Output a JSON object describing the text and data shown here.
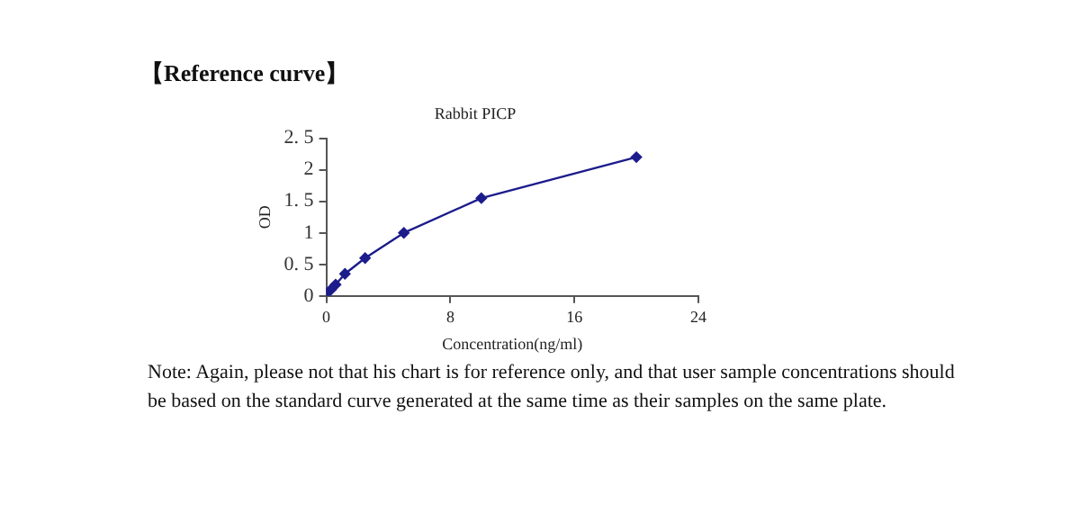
{
  "chart_data": {
    "type": "line",
    "title": "Rabbit PICP",
    "xlabel": "Concentration(ng/ml)",
    "ylabel": "OD",
    "annotations": [
      "【Reference curve】",
      "Note: Again, please not that his chart is for reference only, and that user sample concentrations should be based on the standard curve generated at the same time as their samples on the same plate."
    ],
    "x": [
      0,
      0.3,
      0.6,
      1.2,
      2.5,
      5,
      10,
      20
    ],
    "series": [
      {
        "color": "#1c1c8c",
        "values": [
          0.04,
          0.1,
          0.18,
          0.35,
          0.6,
          1.0,
          1.55,
          2.2
        ]
      }
    ],
    "xlim": [
      0,
      24
    ],
    "xticks": [
      0,
      8,
      16,
      24
    ],
    "ylim": [
      0,
      2.5
    ],
    "yticks": [
      0,
      {
        "value": 0.5,
        "label": "0. 5"
      },
      1,
      {
        "value": 1.5,
        "label": "1. 5"
      },
      2,
      {
        "value": 2.5,
        "label": "2. 5"
      }
    ],
    "grid": false,
    "legend": false,
    "marker": "diamond",
    "line_style": "solid"
  }
}
